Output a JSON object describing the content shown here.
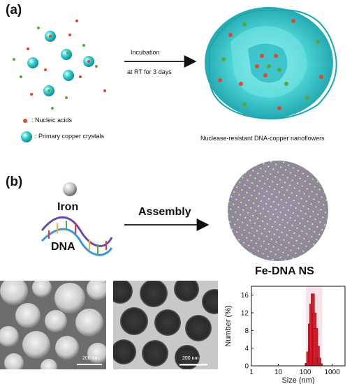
{
  "panel_a": {
    "label": "(a)",
    "arrow_top": "Incubation",
    "arrow_bottom": "at RT for 3 days",
    "legend_nucleic": ": Nucleic acids",
    "legend_crystal": ": Primary copper crystals",
    "product_caption": "Nuclease-resistant DNA-copper nanoflowers",
    "colors": {
      "crystal": "#35c4c4",
      "nucleic_red": "#e2472e",
      "nucleic_green": "#5aa63c"
    }
  },
  "panel_b": {
    "label": "(b)",
    "iron_label": "Iron",
    "dna_label": "DNA",
    "arrow_label": "Assembly",
    "product_label": "Fe-DNA NS"
  },
  "micrographs": {
    "sem_scale": "200 nm",
    "tem_scale": "200 nm"
  },
  "chart_data": {
    "type": "bar",
    "xlabel": "Size (nm)",
    "ylabel": "Number (%)",
    "x_scale": "log",
    "xlim": [
      1,
      3000
    ],
    "ylim": [
      0,
      18
    ],
    "x_ticks": [
      "1",
      "10",
      "100",
      "1000"
    ],
    "y_ticks": [
      "0",
      "4",
      "8",
      "12",
      "16"
    ],
    "x": [
      115,
      130,
      150,
      170,
      190,
      220,
      250,
      290,
      330,
      380
    ],
    "values": [
      0.6,
      3.2,
      9.5,
      14.0,
      16.3,
      12.0,
      8.5,
      4.5,
      1.8,
      0.5
    ],
    "bar_color": "#d11e2a"
  }
}
